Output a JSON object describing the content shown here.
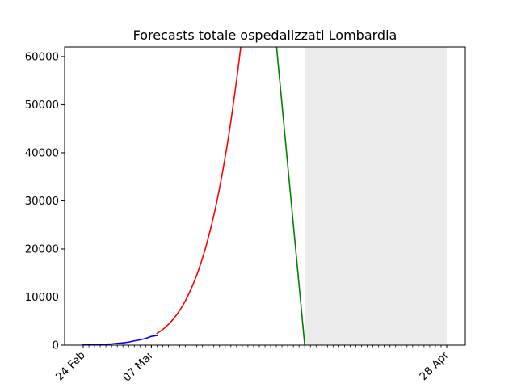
{
  "chart_data": {
    "type": "line",
    "title": "Forecasts totale ospedalizzati Lombardia",
    "xlabel": "",
    "ylabel": "",
    "x_axis": {
      "type": "date",
      "range": [
        "2020-02-24",
        "2020-04-28"
      ],
      "major_ticks": [
        {
          "date": "2020-02-24",
          "label": "24 Feb"
        },
        {
          "date": "2020-03-07",
          "label": "07 Mar"
        },
        {
          "date": "2020-04-28",
          "label": "28 Apr"
        }
      ],
      "minor_ticks": "daily"
    },
    "y_axis": {
      "range": [
        0,
        62000
      ],
      "ticks": [
        0,
        10000,
        20000,
        30000,
        40000,
        50000,
        60000
      ]
    },
    "grid": false,
    "legend": "none",
    "shaded_region": {
      "from": "2020-04-03",
      "to": "2020-04-28",
      "color": "#ebebeb"
    },
    "series": [
      {
        "color": "#0000ff",
        "style": "observed",
        "points": [
          [
            "2020-02-24",
            76
          ],
          [
            "2020-02-25",
            79
          ],
          [
            "2020-02-26",
            102
          ],
          [
            "2020-02-27",
            166
          ],
          [
            "2020-02-28",
            193
          ],
          [
            "2020-02-29",
            244
          ],
          [
            "2020-03-01",
            372
          ],
          [
            "2020-03-02",
            478
          ],
          [
            "2020-03-03",
            628
          ],
          [
            "2020-03-04",
            879
          ],
          [
            "2020-03-05",
            1090
          ],
          [
            "2020-03-06",
            1386
          ],
          [
            "2020-03-07",
            1822
          ],
          [
            "2020-03-08",
            2010
          ]
        ]
      },
      {
        "color": "#ff0000",
        "style": "forecast",
        "points": [
          [
            "2020-03-08",
            2450
          ],
          [
            "2020-03-09",
            3250
          ],
          [
            "2020-03-10",
            4300
          ],
          [
            "2020-03-11",
            5600
          ],
          [
            "2020-03-12",
            7250
          ],
          [
            "2020-03-13",
            9250
          ],
          [
            "2020-03-14",
            11700
          ],
          [
            "2020-03-15",
            14600
          ],
          [
            "2020-03-16",
            18100
          ],
          [
            "2020-03-17",
            22200
          ],
          [
            "2020-03-18",
            27000
          ],
          [
            "2020-03-19",
            32600
          ],
          [
            "2020-03-20",
            39100
          ],
          [
            "2020-03-21",
            46500
          ],
          [
            "2020-03-22",
            55000
          ],
          [
            "2020-03-23",
            64500
          ]
        ]
      },
      {
        "color": "#008000",
        "style": "forecast",
        "points": [
          [
            "2020-03-29",
            62500
          ],
          [
            "2020-04-03",
            0
          ]
        ]
      }
    ]
  }
}
